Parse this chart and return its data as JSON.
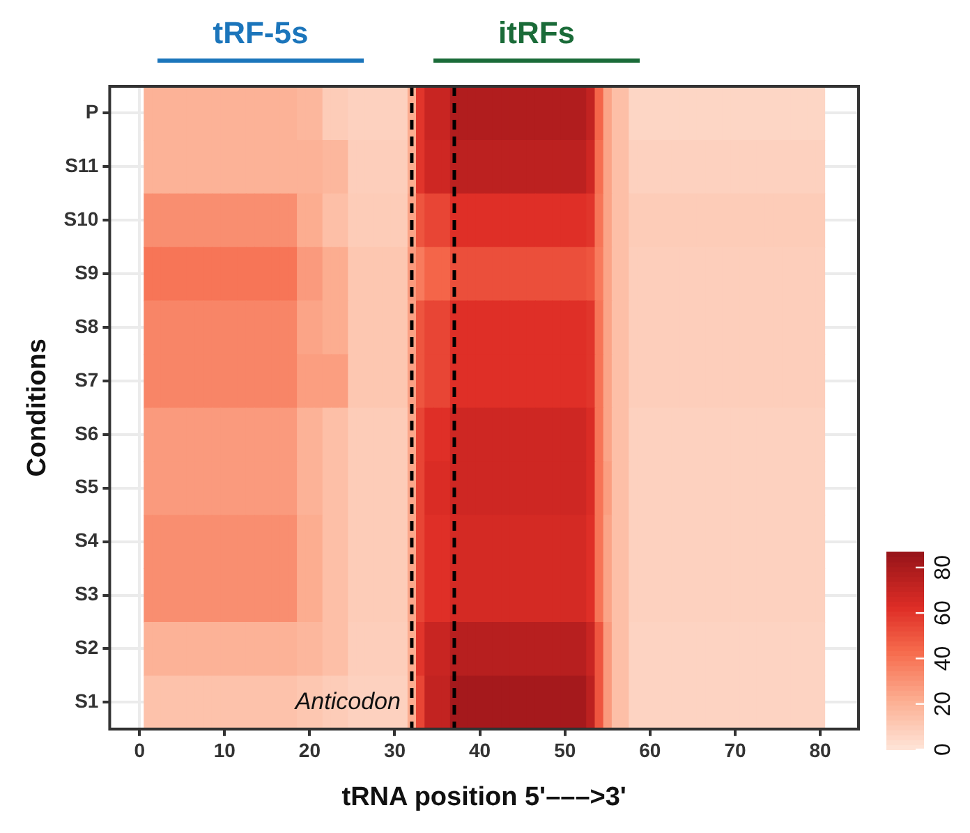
{
  "chart_data": {
    "type": "heatmap",
    "xlabel": "tRNA position 5'–––>3'",
    "ylabel": "Conditions",
    "x": [
      1,
      2,
      3,
      4,
      5,
      6,
      7,
      8,
      9,
      10,
      11,
      12,
      13,
      14,
      15,
      16,
      17,
      18,
      19,
      20,
      21,
      22,
      23,
      24,
      25,
      26,
      27,
      28,
      29,
      30,
      31,
      32,
      33,
      34,
      35,
      36,
      37,
      38,
      39,
      40,
      41,
      42,
      43,
      44,
      45,
      46,
      47,
      48,
      49,
      50,
      51,
      52,
      53,
      54,
      55,
      56,
      57,
      58,
      59,
      60,
      61,
      62,
      63,
      64,
      65,
      66,
      67,
      68,
      69,
      70,
      71,
      72,
      73,
      74,
      75,
      76,
      77,
      78,
      79,
      80
    ],
    "y_categories": [
      "P",
      "S11",
      "S10",
      "S9",
      "S8",
      "S7",
      "S6",
      "S5",
      "S4",
      "S3",
      "S2",
      "S1"
    ],
    "cells": [
      [
        20,
        20,
        20,
        20,
        20,
        20,
        20,
        20,
        20,
        20,
        20,
        20,
        20,
        20,
        20,
        20,
        20,
        20,
        18,
        18,
        18,
        10,
        10,
        10,
        8,
        8,
        8,
        8,
        8,
        8,
        8,
        22,
        60,
        70,
        70,
        70,
        78,
        78,
        78,
        78,
        78,
        78,
        78,
        78,
        78,
        78,
        78,
        78,
        78,
        78,
        78,
        78,
        72,
        45,
        25,
        15,
        15,
        6,
        6,
        6,
        6,
        6,
        6,
        6,
        6,
        6,
        6,
        6,
        6,
        6,
        6,
        6,
        6,
        6,
        6,
        6,
        6,
        6,
        6,
        6
      ],
      [
        20,
        20,
        20,
        20,
        20,
        20,
        20,
        20,
        20,
        20,
        20,
        20,
        20,
        20,
        20,
        20,
        20,
        20,
        20,
        20,
        20,
        18,
        18,
        18,
        9,
        9,
        9,
        9,
        9,
        9,
        9,
        22,
        60,
        68,
        68,
        68,
        74,
        74,
        74,
        74,
        74,
        74,
        74,
        74,
        74,
        74,
        74,
        74,
        74,
        74,
        74,
        74,
        68,
        42,
        25,
        15,
        15,
        8,
        8,
        8,
        8,
        8,
        8,
        8,
        8,
        8,
        8,
        8,
        8,
        8,
        8,
        8,
        8,
        8,
        8,
        8,
        8,
        8,
        8,
        8
      ],
      [
        32,
        32,
        32,
        32,
        32,
        32,
        32,
        32,
        32,
        32,
        32,
        32,
        32,
        32,
        32,
        32,
        32,
        32,
        22,
        22,
        22,
        15,
        15,
        15,
        10,
        10,
        10,
        10,
        10,
        10,
        10,
        25,
        50,
        55,
        55,
        55,
        62,
        62,
        62,
        62,
        62,
        62,
        62,
        62,
        62,
        62,
        62,
        62,
        62,
        62,
        62,
        62,
        60,
        40,
        25,
        15,
        15,
        10,
        10,
        10,
        10,
        10,
        10,
        10,
        10,
        10,
        10,
        10,
        10,
        10,
        10,
        10,
        10,
        10,
        10,
        10,
        10,
        10,
        10,
        10
      ],
      [
        40,
        40,
        40,
        40,
        40,
        40,
        40,
        40,
        40,
        40,
        40,
        40,
        40,
        40,
        40,
        40,
        40,
        40,
        28,
        28,
        28,
        22,
        22,
        22,
        12,
        12,
        12,
        12,
        12,
        12,
        12,
        28,
        38,
        45,
        45,
        45,
        52,
        52,
        52,
        52,
        52,
        52,
        52,
        52,
        52,
        52,
        52,
        52,
        52,
        52,
        52,
        52,
        50,
        38,
        25,
        15,
        15,
        9,
        9,
        9,
        9,
        9,
        9,
        9,
        9,
        9,
        9,
        9,
        9,
        9,
        9,
        9,
        9,
        9,
        9,
        9,
        9,
        9,
        9,
        9
      ],
      [
        35,
        35,
        35,
        35,
        35,
        35,
        35,
        35,
        35,
        35,
        35,
        35,
        35,
        35,
        35,
        35,
        35,
        35,
        25,
        25,
        25,
        22,
        22,
        22,
        12,
        12,
        12,
        12,
        12,
        12,
        12,
        26,
        50,
        55,
        55,
        55,
        62,
        62,
        62,
        62,
        62,
        62,
        62,
        62,
        62,
        62,
        62,
        62,
        62,
        62,
        62,
        62,
        60,
        40,
        25,
        15,
        15,
        9,
        9,
        9,
        9,
        9,
        9,
        9,
        9,
        9,
        9,
        9,
        9,
        9,
        9,
        9,
        9,
        9,
        9,
        9,
        9,
        9,
        9,
        9
      ],
      [
        35,
        35,
        35,
        35,
        35,
        35,
        35,
        35,
        35,
        35,
        35,
        35,
        35,
        35,
        35,
        35,
        35,
        35,
        27,
        27,
        27,
        27,
        27,
        27,
        12,
        12,
        12,
        12,
        12,
        12,
        12,
        26,
        50,
        55,
        55,
        55,
        62,
        62,
        62,
        62,
        62,
        62,
        62,
        62,
        62,
        62,
        62,
        62,
        62,
        62,
        62,
        62,
        60,
        40,
        25,
        15,
        15,
        9,
        9,
        9,
        9,
        9,
        9,
        9,
        9,
        9,
        9,
        9,
        9,
        9,
        9,
        9,
        9,
        9,
        9,
        9,
        9,
        9,
        9,
        9
      ],
      [
        28,
        28,
        28,
        28,
        28,
        28,
        28,
        28,
        28,
        28,
        28,
        28,
        28,
        28,
        28,
        28,
        28,
        28,
        20,
        20,
        20,
        15,
        15,
        15,
        10,
        10,
        10,
        10,
        10,
        10,
        10,
        24,
        55,
        62,
        62,
        62,
        68,
        68,
        68,
        68,
        68,
        68,
        68,
        68,
        68,
        68,
        68,
        68,
        68,
        68,
        68,
        68,
        64,
        40,
        25,
        15,
        15,
        8,
        8,
        8,
        8,
        8,
        8,
        8,
        8,
        8,
        8,
        8,
        8,
        8,
        8,
        8,
        8,
        8,
        8,
        8,
        8,
        8,
        8,
        8
      ],
      [
        28,
        28,
        28,
        28,
        28,
        28,
        28,
        28,
        28,
        28,
        28,
        28,
        28,
        28,
        28,
        28,
        28,
        28,
        20,
        20,
        20,
        15,
        15,
        15,
        10,
        10,
        10,
        10,
        10,
        10,
        10,
        24,
        55,
        64,
        64,
        64,
        68,
        68,
        68,
        68,
        68,
        68,
        68,
        68,
        68,
        68,
        68,
        68,
        68,
        68,
        68,
        68,
        64,
        40,
        27,
        15,
        15,
        8,
        8,
        8,
        8,
        8,
        8,
        8,
        8,
        8,
        8,
        8,
        8,
        8,
        8,
        8,
        8,
        8,
        8,
        8,
        8,
        8,
        8,
        8
      ],
      [
        32,
        32,
        32,
        32,
        32,
        32,
        32,
        32,
        32,
        32,
        32,
        32,
        32,
        32,
        32,
        32,
        32,
        32,
        22,
        22,
        22,
        15,
        15,
        15,
        10,
        10,
        10,
        10,
        10,
        10,
        10,
        24,
        55,
        62,
        62,
        62,
        66,
        66,
        66,
        66,
        66,
        66,
        66,
        66,
        66,
        66,
        66,
        66,
        66,
        66,
        66,
        66,
        62,
        40,
        25,
        15,
        15,
        8,
        8,
        8,
        8,
        8,
        8,
        8,
        8,
        8,
        8,
        8,
        8,
        8,
        8,
        8,
        8,
        8,
        8,
        8,
        8,
        8,
        8,
        8
      ],
      [
        32,
        32,
        32,
        32,
        32,
        32,
        32,
        32,
        32,
        32,
        32,
        32,
        32,
        32,
        32,
        32,
        32,
        32,
        22,
        22,
        22,
        15,
        15,
        15,
        10,
        10,
        10,
        10,
        10,
        10,
        10,
        24,
        55,
        62,
        62,
        62,
        66,
        66,
        66,
        66,
        66,
        66,
        66,
        66,
        66,
        66,
        66,
        66,
        66,
        66,
        66,
        66,
        62,
        40,
        25,
        15,
        15,
        8,
        8,
        8,
        8,
        8,
        8,
        8,
        8,
        8,
        8,
        8,
        8,
        8,
        8,
        8,
        8,
        8,
        8,
        8,
        8,
        8,
        8,
        8
      ],
      [
        20,
        20,
        20,
        20,
        20,
        20,
        20,
        20,
        20,
        20,
        20,
        20,
        20,
        20,
        20,
        20,
        20,
        20,
        18,
        18,
        18,
        15,
        15,
        15,
        9,
        9,
        9,
        9,
        9,
        9,
        9,
        22,
        60,
        70,
        70,
        70,
        76,
        76,
        76,
        76,
        76,
        76,
        76,
        76,
        76,
        76,
        76,
        76,
        76,
        76,
        76,
        76,
        70,
        50,
        28,
        15,
        15,
        7,
        7,
        7,
        7,
        7,
        7,
        7,
        7,
        7,
        7,
        7,
        7,
        7,
        7,
        7,
        7,
        7,
        7,
        7,
        7,
        7,
        7,
        7
      ],
      [
        14,
        14,
        14,
        14,
        14,
        14,
        14,
        14,
        14,
        14,
        14,
        14,
        14,
        14,
        14,
        14,
        14,
        14,
        12,
        12,
        12,
        10,
        10,
        10,
        8,
        8,
        8,
        8,
        8,
        8,
        8,
        22,
        55,
        72,
        72,
        72,
        82,
        82,
        82,
        82,
        82,
        82,
        82,
        82,
        82,
        82,
        82,
        82,
        82,
        82,
        82,
        82,
        74,
        50,
        28,
        15,
        15,
        7,
        7,
        7,
        7,
        7,
        7,
        7,
        7,
        7,
        7,
        7,
        7,
        7,
        7,
        7,
        7,
        7,
        7,
        7,
        7,
        7,
        7,
        7
      ]
    ],
    "xlim": [
      -3.5,
      84.5
    ],
    "xticks": [
      0,
      10,
      20,
      30,
      40,
      50,
      60,
      70,
      80
    ],
    "clim": [
      0,
      87
    ],
    "cticks": [
      0,
      20,
      40,
      60,
      80
    ],
    "ref_lines": [
      {
        "axis": "x",
        "value": 32,
        "color": "#000000",
        "line_style": "dashed"
      },
      {
        "axis": "x",
        "value": 37,
        "color": "#000000",
        "line_style": "dashed"
      }
    ],
    "annotations": [
      "tRF-5s",
      "itRFs",
      {
        "text": "Anticodon",
        "x": 32,
        "y": "S1"
      }
    ],
    "grid": true
  }
}
